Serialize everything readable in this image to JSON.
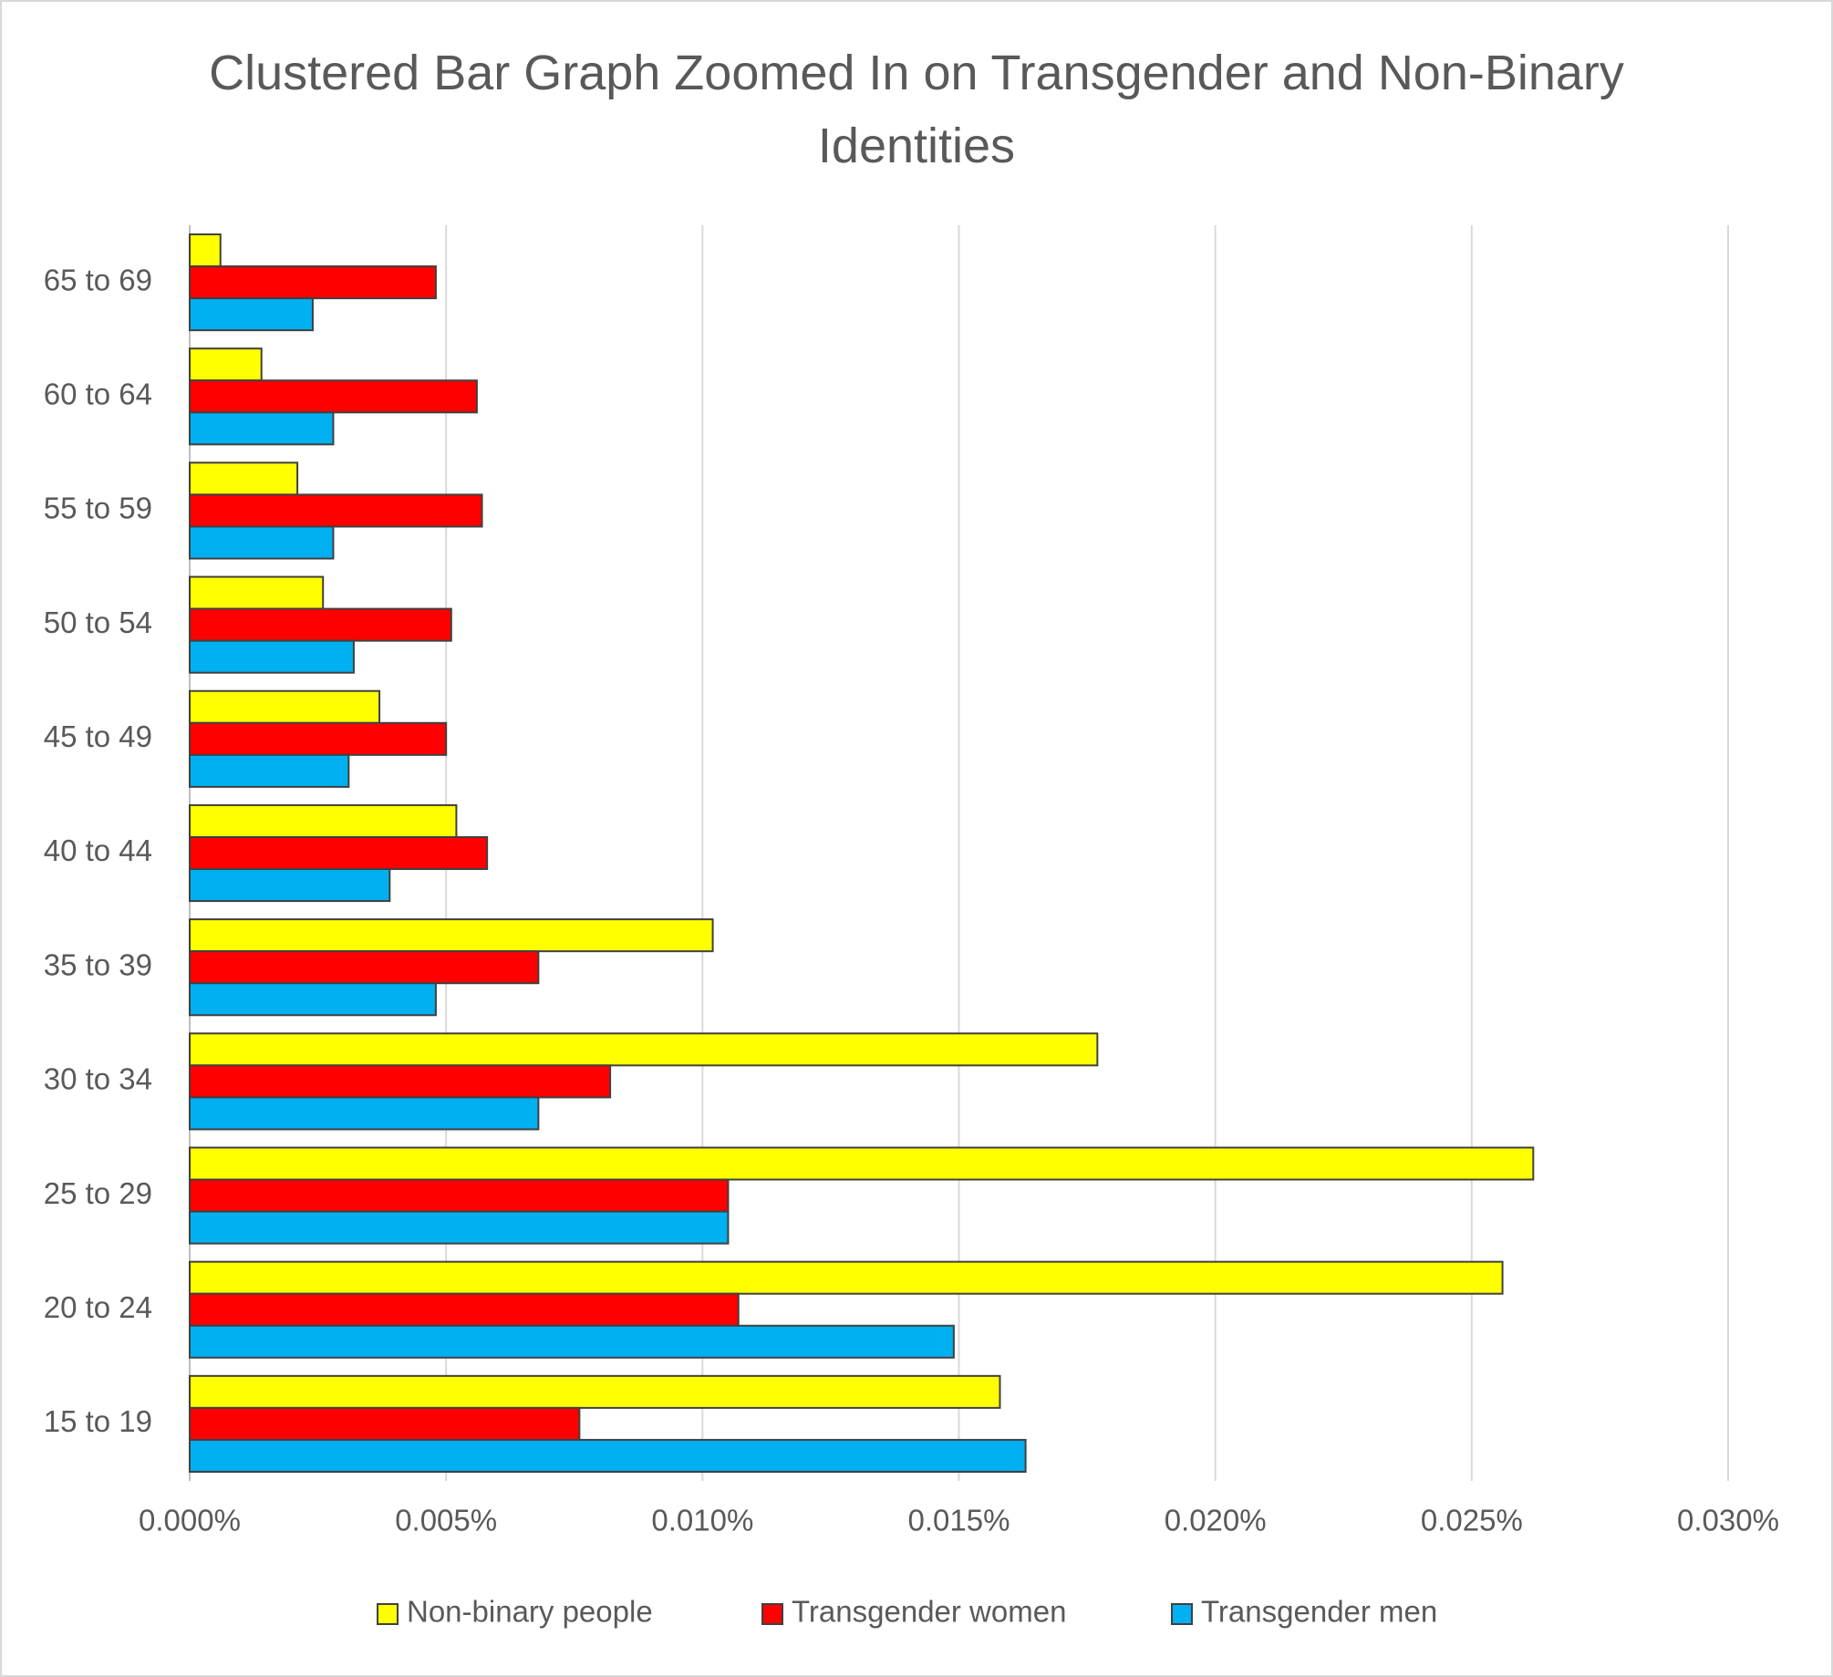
{
  "chart_data": {
    "type": "hbar",
    "title": "Clustered Bar Graph Zoomed In on Transgender and Non-Binary Identities",
    "categories": [
      "15 to 19",
      "20 to 24",
      "25 to 29",
      "30 to 34",
      "35 to 39",
      "40 to 44",
      "45 to 49",
      "50 to 54",
      "55 to 59",
      "60 to 64",
      "65 to 69"
    ],
    "series": [
      {
        "name": "Non-binary people",
        "color": "#ffff00",
        "values": [
          0.0158,
          0.0256,
          0.0262,
          0.0177,
          0.0102,
          0.0052,
          0.0037,
          0.0026,
          0.0021,
          0.0014,
          0.0006
        ]
      },
      {
        "name": "Transgender women",
        "color": "#ff0000",
        "values": [
          0.0076,
          0.0107,
          0.0105,
          0.0082,
          0.0068,
          0.0058,
          0.005,
          0.0051,
          0.0057,
          0.0056,
          0.0048
        ]
      },
      {
        "name": "Transgender men",
        "color": "#00b0f0",
        "values": [
          0.0163,
          0.0149,
          0.0105,
          0.0068,
          0.0048,
          0.0039,
          0.0031,
          0.0032,
          0.0028,
          0.0028,
          0.0024
        ]
      }
    ],
    "xlim": [
      0,
      0.03
    ],
    "xticks": [
      {
        "value": 0,
        "label": "0.000%"
      },
      {
        "value": 0.005,
        "label": "0.005%"
      },
      {
        "value": 0.01,
        "label": "0.010%"
      },
      {
        "value": 0.015,
        "label": "0.015%"
      },
      {
        "value": 0.02,
        "label": "0.020%"
      },
      {
        "value": 0.025,
        "label": "0.025%"
      },
      {
        "value": 0.03,
        "label": "0.030%"
      }
    ],
    "grid": true,
    "legend": "bottom"
  }
}
